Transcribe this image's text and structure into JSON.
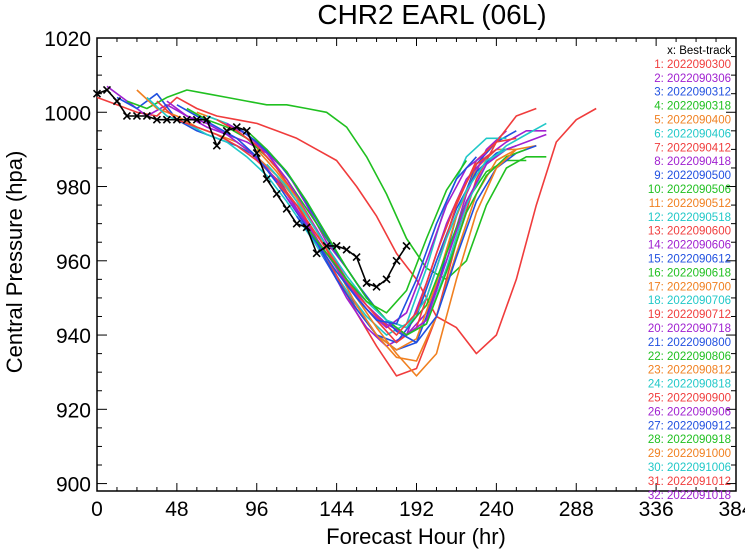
{
  "chart_data": {
    "type": "line",
    "title": "CHR2  EARL (06L)",
    "xlabel": "Forecast Hour (hr)",
    "ylabel": "Central Pressure (hpa)",
    "xlim": [
      0,
      384
    ],
    "ylim": [
      898,
      1020
    ],
    "xticks": [
      0,
      48,
      96,
      144,
      192,
      240,
      288,
      336,
      384
    ],
    "yticks": [
      900,
      920,
      940,
      960,
      980,
      1000,
      1020
    ],
    "legend_position": "top-right",
    "grid": false,
    "best_track": {
      "name": "x: Best-track",
      "color": "#000000",
      "points": [
        [
          0,
          1005
        ],
        [
          6,
          1006
        ],
        [
          12,
          1003
        ],
        [
          18,
          999
        ],
        [
          24,
          999
        ],
        [
          30,
          999
        ],
        [
          36,
          998
        ],
        [
          42,
          998
        ],
        [
          48,
          998
        ],
        [
          54,
          998
        ],
        [
          60,
          998
        ],
        [
          66,
          998
        ],
        [
          72,
          991
        ],
        [
          78,
          995
        ],
        [
          84,
          996
        ],
        [
          90,
          995
        ],
        [
          96,
          989
        ],
        [
          102,
          982
        ],
        [
          108,
          978
        ],
        [
          114,
          974
        ],
        [
          120,
          970
        ],
        [
          126,
          969
        ],
        [
          132,
          962
        ],
        [
          138,
          964
        ],
        [
          144,
          964
        ],
        [
          150,
          963
        ],
        [
          156,
          961
        ],
        [
          162,
          954
        ],
        [
          168,
          953
        ],
        [
          174,
          955
        ],
        [
          180,
          960
        ],
        [
          186,
          964
        ]
      ]
    },
    "series": [
      {
        "name": "1: 2022090300",
        "color": "#f03c3c",
        "x0": 0,
        "values": [
          1004,
          1002,
          1000,
          999,
          1004,
          1001,
          999,
          998,
          997,
          995,
          993,
          990,
          987,
          980,
          972,
          962,
          955,
          945,
          942,
          935,
          940,
          955,
          975,
          992,
          998,
          1001
        ]
      },
      {
        "name": "2: 2022090306",
        "color": "#a020d0",
        "x0": 6,
        "values": [
          1007,
          1003,
          999,
          1002,
          999,
          996,
          994,
          992,
          989,
          984,
          975,
          965,
          958,
          950,
          944,
          940,
          946,
          960,
          978,
          990,
          995
        ]
      },
      {
        "name": "3: 2022090312",
        "color": "#2050e0",
        "x0": 12,
        "values": [
          1004,
          1001,
          1005,
          998,
          995,
          993,
          991,
          988,
          983,
          974,
          964,
          955,
          948,
          940,
          936,
          938,
          952,
          972,
          986,
          992,
          995
        ]
      },
      {
        "name": "4: 2022090318",
        "color": "#20c020",
        "x0": 18,
        "values": [
          1003,
          1001,
          1004,
          1006,
          1005,
          1004,
          1003,
          1002,
          1002,
          1001,
          1000,
          996,
          988,
          978,
          966,
          958,
          955,
          960,
          975,
          985,
          988,
          988
        ]
      },
      {
        "name": "5: 2022090400",
        "color": "#f08020",
        "x0": 24,
        "values": [
          1006,
          1001,
          999,
          996,
          994,
          992,
          988,
          983,
          976,
          966,
          956,
          947,
          940,
          936,
          939,
          954,
          972,
          985,
          990,
          990
        ]
      },
      {
        "name": "6: 2022090406",
        "color": "#20c8c8",
        "x0": 30,
        "values": [
          1004,
          999,
          997,
          994,
          992,
          988,
          983,
          976,
          968,
          960,
          952,
          945,
          940,
          943,
          958,
          976,
          988,
          993,
          993
        ]
      },
      {
        "name": "7: 2022090412",
        "color": "#f03c3c",
        "x0": 36,
        "values": [
          1003,
          998,
          996,
          994,
          991,
          987,
          982,
          975,
          966,
          956,
          946,
          937,
          929,
          931,
          945,
          965,
          982,
          992,
          999,
          1001
        ]
      },
      {
        "name": "8: 2022090418",
        "color": "#a020d0",
        "x0": 42,
        "values": [
          1003,
          999,
          997,
          994,
          990,
          985,
          978,
          970,
          960,
          950,
          942,
          937,
          940,
          954,
          970,
          982,
          988,
          992,
          995,
          995
        ]
      },
      {
        "name": "9: 2022090500",
        "color": "#2050e0",
        "x0": 48,
        "values": [
          1002,
          999,
          996,
          993,
          988,
          981,
          973,
          965,
          955,
          947,
          940,
          938,
          945,
          960,
          974,
          984,
          989,
          991
        ]
      },
      {
        "name": "10: 2022090506",
        "color": "#20c020",
        "x0": 54,
        "values": [
          1001,
          998,
          996,
          993,
          988,
          982,
          974,
          966,
          958,
          950,
          944,
          942,
          948,
          962,
          976,
          984,
          987,
          987
        ]
      },
      {
        "name": "11: 2022090512",
        "color": "#f08020",
        "x0": 60,
        "values": [
          1000,
          998,
          995,
          991,
          985,
          977,
          968,
          958,
          948,
          940,
          934,
          933,
          945,
          962,
          978,
          987,
          990,
          991
        ]
      },
      {
        "name": "12: 2022090518",
        "color": "#20c8c8",
        "x0": 66,
        "values": [
          999,
          997,
          994,
          990,
          984,
          976,
          967,
          958,
          950,
          944,
          940,
          943,
          958,
          975,
          986,
          991,
          994,
          997
        ]
      },
      {
        "name": "13: 2022090600",
        "color": "#f03c3c",
        "x0": 72,
        "values": [
          998,
          995,
          991,
          985,
          977,
          968,
          958,
          950,
          944,
          938,
          942,
          958,
          975,
          987,
          992,
          993
        ]
      },
      {
        "name": "14: 2022090606",
        "color": "#a020d0",
        "x0": 78,
        "values": [
          997,
          994,
          989,
          982,
          973,
          964,
          955,
          948,
          943,
          940,
          944,
          960,
          976,
          986,
          990,
          992,
          994
        ]
      },
      {
        "name": "15: 2022090612",
        "color": "#2050e0",
        "x0": 84,
        "values": [
          996,
          992,
          987,
          980,
          971,
          962,
          954,
          947,
          941,
          938,
          945,
          961,
          976,
          985,
          989,
          991
        ]
      },
      {
        "name": "16: 2022090618",
        "color": "#20c020",
        "x0": 90,
        "values": [
          995,
          990,
          984,
          976,
          967,
          958,
          950,
          944,
          940,
          943,
          957,
          973,
          983,
          988,
          990
        ]
      },
      {
        "name": "17: 2022090700",
        "color": "#f08020",
        "x0": 96,
        "values": [
          990,
          984,
          977,
          968,
          959,
          950,
          942,
          935,
          929,
          935,
          955,
          973,
          985,
          990
        ]
      },
      {
        "name": "18: 2022090706",
        "color": "#20c8c8",
        "x0": 102,
        "values": [
          986,
          980,
          972,
          964,
          956,
          949,
          944,
          942,
          950,
          966,
          979,
          987,
          990
        ]
      },
      {
        "name": "19: 2022090712",
        "color": "#f03c3c",
        "x0": 108,
        "values": [
          981,
          975,
          967,
          959,
          951,
          945,
          940,
          946,
          962,
          976,
          986,
          990
        ]
      },
      {
        "name": "20: 2022090718",
        "color": "#a020d0",
        "x0": 114,
        "values": [
          977,
          970,
          962,
          954,
          947,
          942,
          946,
          960,
          975,
          985,
          989
        ]
      },
      {
        "name": "21: 2022090800",
        "color": "#2050e0",
        "x0": 120,
        "values": [
          972,
          965,
          957,
          950,
          944,
          943,
          955,
          970,
          982,
          988
        ]
      },
      {
        "name": "22: 2022090806",
        "color": "#20c020",
        "x0": 126,
        "values": [
          969,
          962,
          955,
          949,
          946,
          952,
          966,
          979,
          987
        ]
      }
    ],
    "legend_extra": [
      {
        "name": "23: 2022090812",
        "color": "#f08020"
      },
      {
        "name": "24: 2022090818",
        "color": "#20c8c8"
      },
      {
        "name": "25: 2022090900",
        "color": "#f03c3c"
      },
      {
        "name": "26: 2022090906",
        "color": "#a020d0"
      },
      {
        "name": "27: 2022090912",
        "color": "#2050e0"
      },
      {
        "name": "28: 2022090918",
        "color": "#20c020"
      },
      {
        "name": "29: 2022091000",
        "color": "#f08020"
      },
      {
        "name": "30: 2022091006",
        "color": "#20c8c8"
      },
      {
        "name": "31: 2022091012",
        "color": "#f03c3c"
      },
      {
        "name": "32: 2022091018",
        "color": "#a020d0"
      }
    ]
  }
}
